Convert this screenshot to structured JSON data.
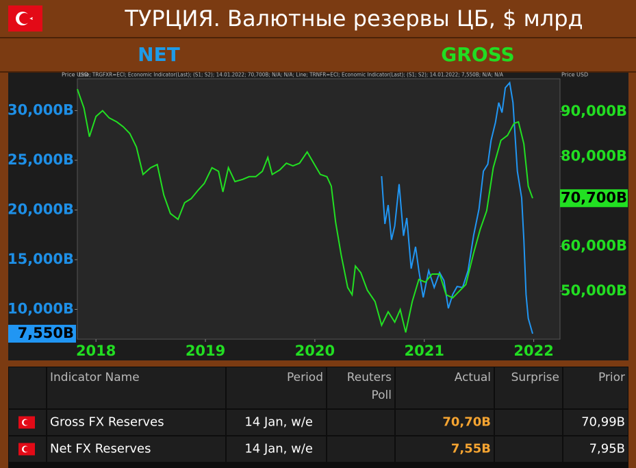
{
  "chart_data": {
    "type": "line",
    "title": "ТУРЦИЯ. Валютные резервы ЦБ, $ млрд",
    "left_header": "NET",
    "right_header": "GROSS",
    "axis_unit_left": "Price USD",
    "axis_unit_right": "Price USD",
    "legend_text": "Line; TRGFXR=ECI; Economic Indicator(Last); (S1; S2); 14.01.2022; 70,700B; N/A; N/A; Line; TRNFR=ECI; Economic Indicator(Last); (S1; S2); 14.01.2022; 7,550B; N/A; N/A",
    "xlim": [
      2017.83,
      2022.24
    ],
    "xticks": [
      2018,
      2019,
      2020,
      2021,
      2022
    ],
    "ylim": [
      7000,
      33200
    ],
    "yticks": [
      {
        "value": 10000,
        "label": "10,000B"
      },
      {
        "value": 15000,
        "label": "15,000B"
      },
      {
        "value": 20000,
        "label": "20,000B"
      },
      {
        "value": 25000,
        "label": "25,000B"
      },
      {
        "value": 30000,
        "label": "30,000B"
      }
    ],
    "y2lim": [
      39300,
      97300
    ],
    "y2ticks": [
      {
        "value": 50000,
        "label": "50,000B"
      },
      {
        "value": 60000,
        "label": "60,000B"
      },
      {
        "value": 80000,
        "label": "80,000B"
      },
      {
        "value": 90000,
        "label": "90,000B"
      }
    ],
    "series": [
      {
        "name": "NET",
        "color": "#2196f3",
        "last_value_label": "7,550B",
        "x": [
          2020.61,
          2020.64,
          2020.67,
          2020.7,
          2020.73,
          2020.77,
          2020.81,
          2020.84,
          2020.88,
          2020.92,
          2020.95,
          2020.99,
          2021.04,
          2021.09,
          2021.14,
          2021.18,
          2021.22,
          2021.26,
          2021.3,
          2021.35,
          2021.4,
          2021.45,
          2021.5,
          2021.54,
          2021.58,
          2021.61,
          2021.65,
          2021.68,
          2021.71,
          2021.74,
          2021.78,
          2021.81,
          2021.85,
          2021.89,
          2021.91,
          2021.93,
          2021.95,
          2021.99
        ],
        "values": [
          23400,
          18600,
          20500,
          17000,
          18400,
          22600,
          17400,
          19200,
          14100,
          16300,
          13900,
          11200,
          13900,
          12200,
          13700,
          12900,
          10100,
          11500,
          12300,
          12200,
          13900,
          17400,
          20100,
          23900,
          24600,
          27000,
          28800,
          30800,
          29800,
          32300,
          32800,
          30800,
          23900,
          21200,
          17000,
          11500,
          9100,
          7550
        ]
      },
      {
        "name": "GROSS",
        "color": "#22e022",
        "axis": "y2",
        "last_value_label": "70,700B",
        "x": [
          2017.83,
          2017.89,
          2017.94,
          2018.0,
          2018.06,
          2018.12,
          2018.19,
          2018.25,
          2018.31,
          2018.37,
          2018.43,
          2018.5,
          2018.56,
          2018.62,
          2018.68,
          2018.75,
          2018.81,
          2018.87,
          2018.93,
          2018.99,
          2019.06,
          2019.12,
          2019.16,
          2019.21,
          2019.27,
          2019.34,
          2019.4,
          2019.46,
          2019.52,
          2019.57,
          2019.61,
          2019.68,
          2019.74,
          2019.8,
          2019.86,
          2019.93,
          2019.99,
          2020.05,
          2020.11,
          2020.15,
          2020.19,
          2020.24,
          2020.3,
          2020.34,
          2020.37,
          2020.42,
          2020.48,
          2020.55,
          2020.61,
          2020.67,
          2020.73,
          2020.78,
          2020.83,
          2020.89,
          2020.95,
          2021.01,
          2021.07,
          2021.14,
          2021.2,
          2021.26,
          2021.32,
          2021.38,
          2021.45,
          2021.51,
          2021.57,
          2021.63,
          2021.7,
          2021.76,
          2021.82,
          2021.86,
          2021.91,
          2021.95,
          2021.99
        ],
        "values": [
          95000,
          90800,
          84400,
          88900,
          90200,
          88600,
          87700,
          86600,
          85100,
          82100,
          76000,
          77500,
          78200,
          71400,
          67300,
          66000,
          69700,
          70600,
          72400,
          74000,
          77500,
          76700,
          72100,
          77500,
          74400,
          74900,
          75500,
          75500,
          76700,
          79800,
          76000,
          77000,
          78500,
          77900,
          78500,
          81000,
          78500,
          76000,
          75500,
          73400,
          65300,
          58100,
          50800,
          49200,
          55600,
          54100,
          50200,
          47700,
          42400,
          45400,
          43100,
          45900,
          40800,
          47700,
          52600,
          52000,
          53800,
          53800,
          49200,
          48500,
          50000,
          51500,
          58400,
          63700,
          67900,
          77500,
          83600,
          84700,
          87400,
          87700,
          82800,
          73400,
          70700
        ]
      }
    ]
  },
  "table": {
    "headers": [
      "Indicator Name",
      "Period",
      "Reuters Poll",
      "Actual",
      "Surprise",
      "Prior"
    ],
    "rows": [
      {
        "indicator": "Gross FX Reserves",
        "period": "14 Jan, w/e",
        "actual": "70,70B",
        "prior": "70,99B"
      },
      {
        "indicator": "Net FX Reserves",
        "period": "14 Jan, w/e",
        "actual": "7,55B",
        "prior": "7,95B"
      }
    ]
  }
}
